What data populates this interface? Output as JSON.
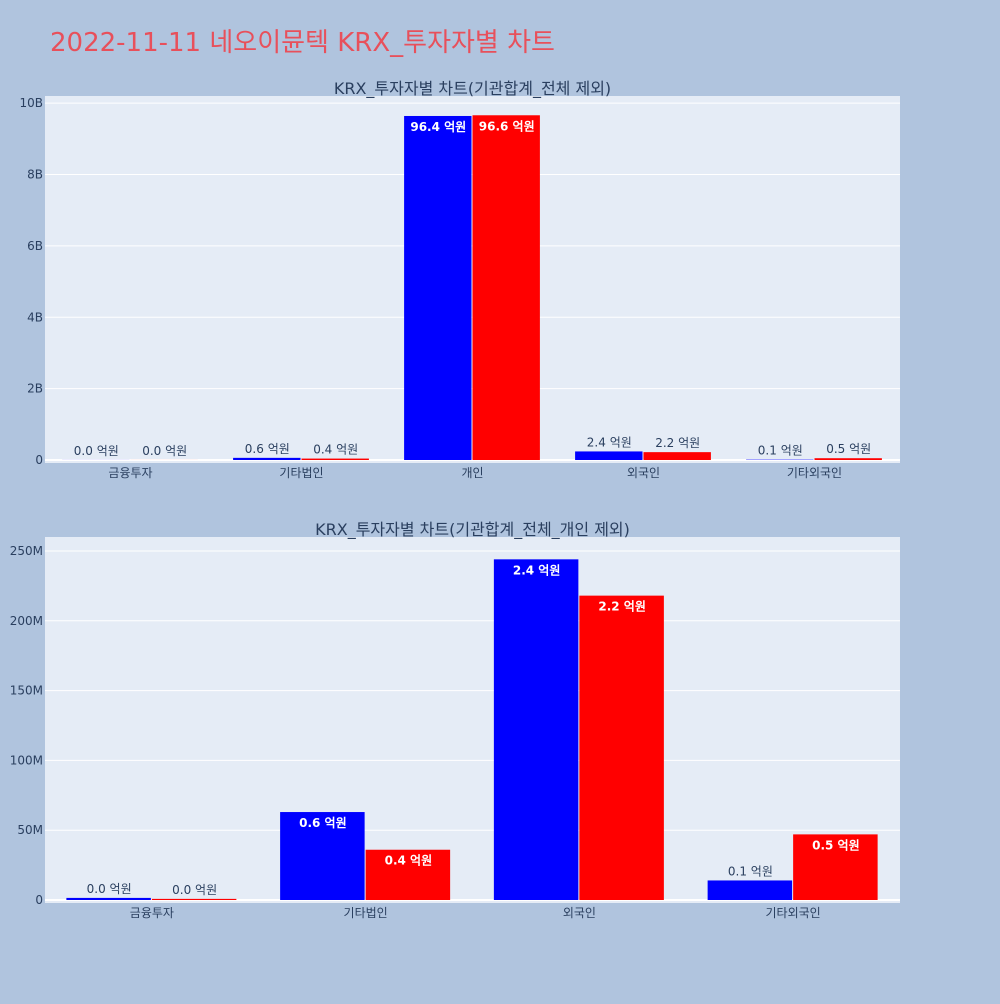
{
  "title": "2022-11-11 네오이뮨텍 KRX_투자자별 차트",
  "colors": {
    "series_a": "#0000ff",
    "series_b": "#ff0000",
    "title": "#e8505b"
  },
  "chart_data": [
    {
      "type": "bar",
      "title": "KRX_투자자별 차트(기관합계_전체 제외)",
      "categories": [
        "금융투자",
        "기타법인",
        "개인",
        "외국인",
        "기타외국인"
      ],
      "ylim": [
        0,
        10200000000
      ],
      "yticks": [
        0,
        2000000000,
        4000000000,
        6000000000,
        8000000000,
        10000000000
      ],
      "ytick_labels": [
        "0",
        "2B",
        "4B",
        "6B",
        "8B",
        "10B"
      ],
      "grid": true,
      "series": [
        {
          "color": "#0000ff",
          "values": [
            2000000,
            60000000,
            9640000000,
            240000000,
            10000000
          ],
          "labels": [
            "0.0 억원",
            "0.6 억원",
            "96.4 억원",
            "2.4 억원",
            "0.1 억원"
          ]
        },
        {
          "color": "#ff0000",
          "values": [
            1000000,
            40000000,
            9660000000,
            220000000,
            50000000
          ],
          "labels": [
            "0.0 억원",
            "0.4 억원",
            "96.6 억원",
            "2.2 억원",
            "0.5 억원"
          ]
        }
      ]
    },
    {
      "type": "bar",
      "title": "KRX_투자자별 차트(기관합계_전체_개인 제외)",
      "categories": [
        "금융투자",
        "기타법인",
        "외국인",
        "기타외국인"
      ],
      "ylim": [
        0,
        260000000
      ],
      "yticks": [
        0,
        50000000,
        100000000,
        150000000,
        200000000,
        250000000
      ],
      "ytick_labels": [
        "0",
        "50M",
        "100M",
        "150M",
        "200M",
        "250M"
      ],
      "grid": true,
      "series": [
        {
          "color": "#0000ff",
          "values": [
            1500000,
            63000000,
            244000000,
            14000000
          ],
          "labels": [
            "0.0 억원",
            "0.6 억원",
            "2.4 억원",
            "0.1 억원"
          ]
        },
        {
          "color": "#ff0000",
          "values": [
            800000,
            36000000,
            218000000,
            47000000
          ],
          "labels": [
            "0.0 억원",
            "0.4 억원",
            "2.2 억원",
            "0.5 억원"
          ]
        }
      ]
    }
  ]
}
